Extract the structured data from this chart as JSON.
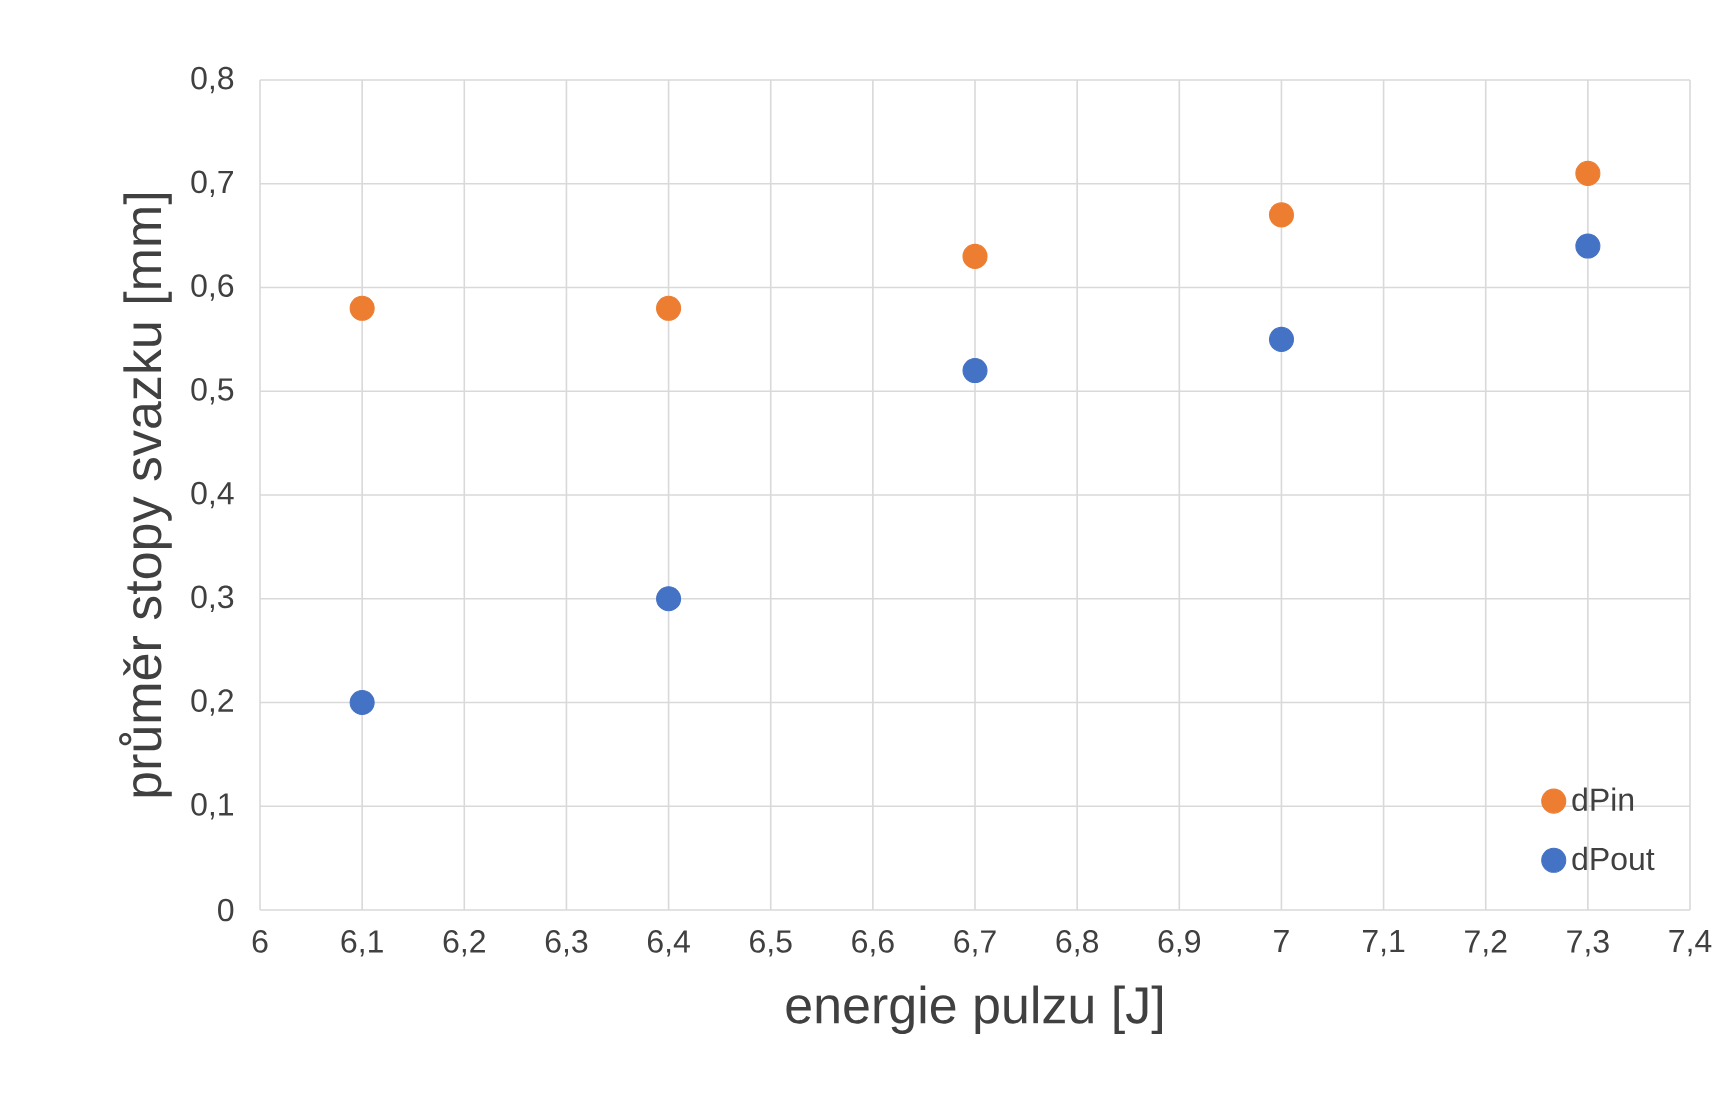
{
  "chart_data": {
    "type": "scatter",
    "xlabel": "energie pulzu [J]",
    "ylabel": "průměr stopy svazku [mm]",
    "x": [
      6.1,
      6.4,
      6.7,
      7.0,
      7.3
    ],
    "series": [
      {
        "name": "dPin",
        "color": "#ed7d31",
        "values": [
          0.58,
          0.58,
          0.63,
          0.67,
          0.71
        ]
      },
      {
        "name": "dPout",
        "color": "#4472c4",
        "values": [
          0.2,
          0.3,
          0.52,
          0.55,
          0.64
        ]
      }
    ],
    "xlim": [
      6,
      7.4
    ],
    "xticks": [
      {
        "value": 6,
        "label": "6"
      },
      {
        "value": 6.1,
        "label": "6,1"
      },
      {
        "value": 6.2,
        "label": "6,2"
      },
      {
        "value": 6.3,
        "label": "6,3"
      },
      {
        "value": 6.4,
        "label": "6,4"
      },
      {
        "value": 6.5,
        "label": "6,5"
      },
      {
        "value": 6.6,
        "label": "6,6"
      },
      {
        "value": 6.7,
        "label": "6,7"
      },
      {
        "value": 6.8,
        "label": "6,8"
      },
      {
        "value": 6.9,
        "label": "6,9"
      },
      {
        "value": 7,
        "label": "7"
      },
      {
        "value": 7.1,
        "label": "7,1"
      },
      {
        "value": 7.2,
        "label": "7,2"
      },
      {
        "value": 7.3,
        "label": "7,3"
      },
      {
        "value": 7.4,
        "label": "7,4"
      }
    ],
    "ylim": [
      0,
      0.8
    ],
    "yticks": [
      {
        "value": 0,
        "label": "0"
      },
      {
        "value": 0.1,
        "label": "0,1"
      },
      {
        "value": 0.2,
        "label": "0,2"
      },
      {
        "value": 0.3,
        "label": "0,3"
      },
      {
        "value": 0.4,
        "label": "0,4"
      },
      {
        "value": 0.5,
        "label": "0,5"
      },
      {
        "value": 0.6,
        "label": "0,6"
      },
      {
        "value": 0.7,
        "label": "0,7"
      },
      {
        "value": 0.8,
        "label": "0,8"
      }
    ],
    "grid": true,
    "legend": "bottom right",
    "marker": "circle"
  }
}
